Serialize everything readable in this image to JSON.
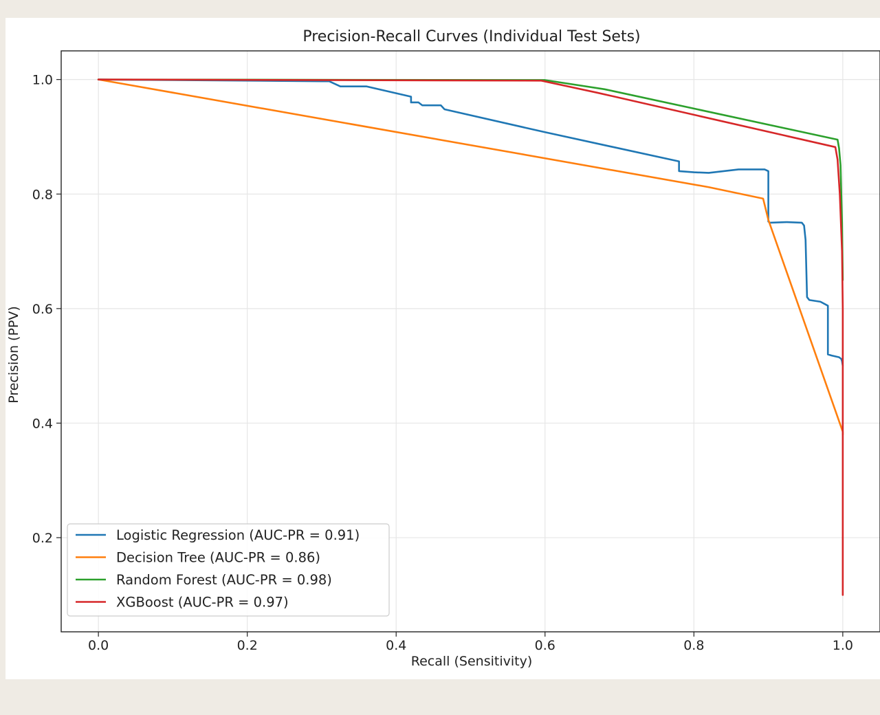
{
  "chart_data": {
    "type": "line",
    "title": "Precision-Recall Curves (Individual Test Sets)",
    "xlabel": "Recall (Sensitivity)",
    "ylabel": "Precision (PPV)",
    "xlim": [
      -0.05,
      1.05
    ],
    "ylim": [
      0.05,
      1.05
    ],
    "xticks": [
      "0.0",
      "0.2",
      "0.4",
      "0.6",
      "0.8",
      "1.0"
    ],
    "yticks": [
      "0.2",
      "0.4",
      "0.6",
      "0.8",
      "1.0"
    ],
    "grid": true,
    "legend_position": "lower-left",
    "series": [
      {
        "name": "Logistic Regression (AUC-PR = 0.91)",
        "color": "#1f77b4",
        "x": [
          0.0,
          0.3,
          0.31,
          0.325,
          0.355,
          0.36,
          0.42,
          0.42,
          0.43,
          0.435,
          0.44,
          0.46,
          0.465,
          0.6,
          0.78,
          0.78,
          0.8,
          0.82,
          0.86,
          0.89,
          0.895,
          0.9,
          0.9,
          0.902,
          0.925,
          0.945,
          0.948,
          0.95,
          0.952,
          0.955,
          0.97,
          0.98,
          0.98,
          0.985,
          0.995,
          0.998,
          0.999,
          1.0
        ],
        "y": [
          1.0,
          0.997,
          0.997,
          0.988,
          0.988,
          0.988,
          0.97,
          0.96,
          0.96,
          0.955,
          0.955,
          0.955,
          0.948,
          0.908,
          0.857,
          0.84,
          0.838,
          0.837,
          0.843,
          0.843,
          0.843,
          0.84,
          0.752,
          0.75,
          0.751,
          0.75,
          0.745,
          0.72,
          0.62,
          0.615,
          0.612,
          0.605,
          0.52,
          0.518,
          0.515,
          0.512,
          0.508,
          0.5
        ]
      },
      {
        "name": "Decision Tree (AUC-PR = 0.86)",
        "color": "#ff7f0e",
        "x": [
          0.0,
          0.82,
          0.893,
          0.9,
          1.0,
          1.0
        ],
        "y": [
          1.0,
          0.812,
          0.792,
          0.755,
          0.385,
          0.38
        ]
      },
      {
        "name": "Random Forest (AUC-PR = 0.98)",
        "color": "#2ca02c",
        "x": [
          0.0,
          0.6,
          0.68,
          0.993,
          0.995,
          0.997,
          0.999,
          1.0
        ],
        "y": [
          1.0,
          0.999,
          0.983,
          0.895,
          0.88,
          0.85,
          0.75,
          0.65
        ]
      },
      {
        "name": "XGBoost (AUC-PR = 0.97)",
        "color": "#d62728",
        "x": [
          0.0,
          0.595,
          0.67,
          0.99,
          0.993,
          0.996,
          0.999,
          1.0,
          1.0
        ],
        "y": [
          1.0,
          0.998,
          0.977,
          0.882,
          0.86,
          0.8,
          0.7,
          0.6,
          0.1
        ]
      }
    ]
  }
}
